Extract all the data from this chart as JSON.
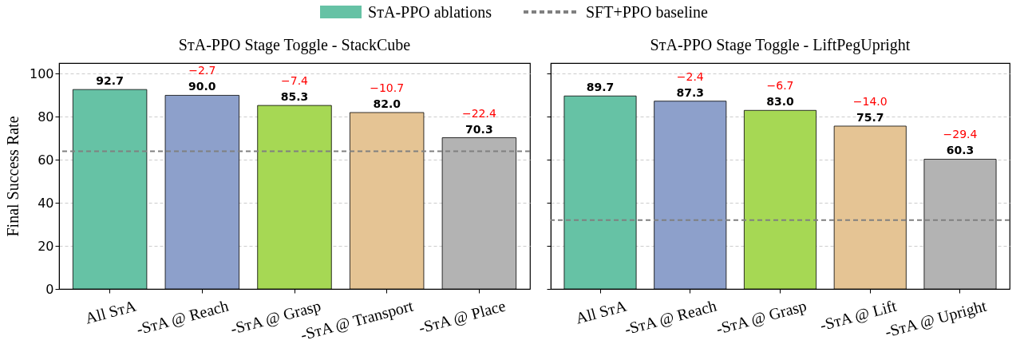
{
  "chart_data": [
    {
      "type": "bar",
      "title": "SᴛA-PPO Stage Toggle - StackCube",
      "ylabel": "Final Success Rate",
      "categories": [
        "All SᴛA",
        "-SᴛA @ Reach",
        "-SᴛA @ Grasp",
        "-SᴛA @ Transport",
        "-SᴛA @ Place"
      ],
      "series": [
        {
          "name": "SᴛA-PPO ablations",
          "values": [
            92.7,
            90.0,
            85.3,
            82.0,
            70.3
          ],
          "value_labels": [
            "92.7",
            "90.0",
            "85.3",
            "82.0",
            "70.3"
          ]
        }
      ],
      "colors": [
        "#66c2a5",
        "#8da0cb",
        "#a6d854",
        "#e5c494",
        "#b3b3b3"
      ],
      "ylim": [
        0,
        105
      ],
      "yticks": [
        0,
        20,
        40,
        60,
        80,
        100
      ],
      "grid": "y",
      "legend": "top",
      "ref_lines": [
        {
          "axis": "y",
          "value": 64,
          "label": "SFT+PPO baseline",
          "color": "#808080",
          "line_style": "dashed"
        }
      ],
      "annotations": [
        {
          "text": "−2.7",
          "x": "-SᴛA @ Reach",
          "y": 90.0
        },
        {
          "text": "−7.4",
          "x": "-SᴛA @ Grasp",
          "y": 85.3
        },
        {
          "text": "−10.7",
          "x": "-SᴛA @ Transport",
          "y": 82.0
        },
        {
          "text": "−22.4",
          "x": "-SᴛA @ Place",
          "y": 70.3
        }
      ]
    },
    {
      "type": "bar",
      "title": "SᴛA-PPO Stage Toggle - LiftPegUpright",
      "categories": [
        "All SᴛA",
        "-SᴛA @ Reach",
        "-SᴛA @ Grasp",
        "-SᴛA @ Lift",
        "-SᴛA @ Upright"
      ],
      "series": [
        {
          "values": [
            89.7,
            87.3,
            83.0,
            75.7,
            60.3
          ],
          "value_labels": [
            "89.7",
            "87.3",
            "83.0",
            "75.7",
            "60.3"
          ]
        }
      ],
      "colors": [
        "#66c2a5",
        "#8da0cb",
        "#a6d854",
        "#e5c494",
        "#b3b3b3"
      ],
      "ylim": [
        0,
        105
      ],
      "yticks": [
        0,
        20,
        40,
        60,
        80,
        100
      ],
      "grid": "y",
      "tick_labels": "x",
      "ref_lines": [
        {
          "axis": "y",
          "value": 32,
          "color": "#808080",
          "line_style": "dashed"
        }
      ],
      "annotations": [
        {
          "text": "−2.4",
          "x": "-SᴛA @ Reach",
          "y": 87.3
        },
        {
          "text": "−6.7",
          "x": "-SᴛA @ Grasp",
          "y": 83.0
        },
        {
          "text": "−14.0",
          "x": "-SᴛA @ Lift",
          "y": 75.7
        },
        {
          "text": "−29.4",
          "x": "-SᴛA @ Upright",
          "y": 60.3
        }
      ]
    }
  ]
}
